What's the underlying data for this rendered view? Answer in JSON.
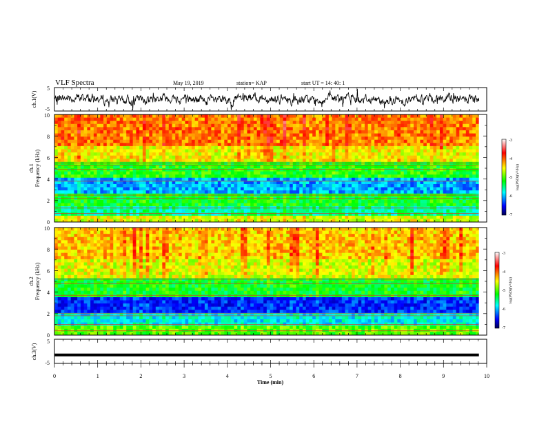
{
  "header": {
    "title": "VLF Spectra",
    "date": "May 19, 2019",
    "station": "station= KAP",
    "start_ut": "start  UT  =   14: 40: 1"
  },
  "colors": {
    "spectrogram_scale": [
      "#000080",
      "#0000ff",
      "#00ffff",
      "#00ff00",
      "#ffff00",
      "#ff0000",
      "#ffffff"
    ],
    "trace": "#000000"
  },
  "chart_data": [
    {
      "type": "line",
      "panel": "ch1-waveform",
      "ylabel": "ch.1(V)",
      "ylim": [
        -5,
        5
      ],
      "yticks": [
        "5",
        "-5"
      ],
      "xlim": [
        0,
        10
      ],
      "series": [
        {
          "values_note": "",
          "mean": 0,
          "amplitude": 2.5
        }
      ]
    },
    {
      "type": "heatmap",
      "panel": "ch1-spectrogram",
      "ylabel": "ch.1\nFrequency (kHz)",
      "ylabel_line1": "ch.1",
      "ylabel_line2": "Frequency (kHz)",
      "ylim": [
        0,
        10
      ],
      "yticks": [
        "0",
        "2",
        "4",
        "6",
        "8",
        "10"
      ],
      "xlim": [
        0,
        10
      ],
      "colorbar": {
        "label": "log(PSD)(V²/Hz)",
        "range": [
          -7,
          -3
        ],
        "ticks": [
          "-3",
          "-4",
          "-5",
          "-6",
          "-7"
        ]
      }
    },
    {
      "type": "heatmap",
      "panel": "ch2-spectrogram",
      "ylabel_line1": "ch.2",
      "ylabel_line2": "Frequency (kHz)",
      "ylim": [
        0,
        10
      ],
      "yticks": [
        "0",
        "2",
        "4",
        "6",
        "8",
        "10"
      ],
      "xlim": [
        0,
        10
      ],
      "colorbar": {
        "label": "log(PSD)(V²/Hz)",
        "range": [
          -7,
          -3
        ],
        "ticks": [
          "-3",
          "-4",
          "-5",
          "-6",
          "-7"
        ]
      }
    },
    {
      "type": "line",
      "panel": "ch3-waveform",
      "ylabel": "ch.3(V)",
      "ylim": [
        -5,
        5
      ],
      "yticks": [
        "5",
        "-5"
      ],
      "xlim": [
        0,
        10
      ],
      "series": [
        {
          "constant": -1.5
        }
      ]
    }
  ],
  "xaxis": {
    "label": "Time  (min)",
    "ticks": [
      "0",
      "1",
      "2",
      "3",
      "4",
      "5",
      "6",
      "7",
      "8",
      "9",
      "10"
    ]
  }
}
